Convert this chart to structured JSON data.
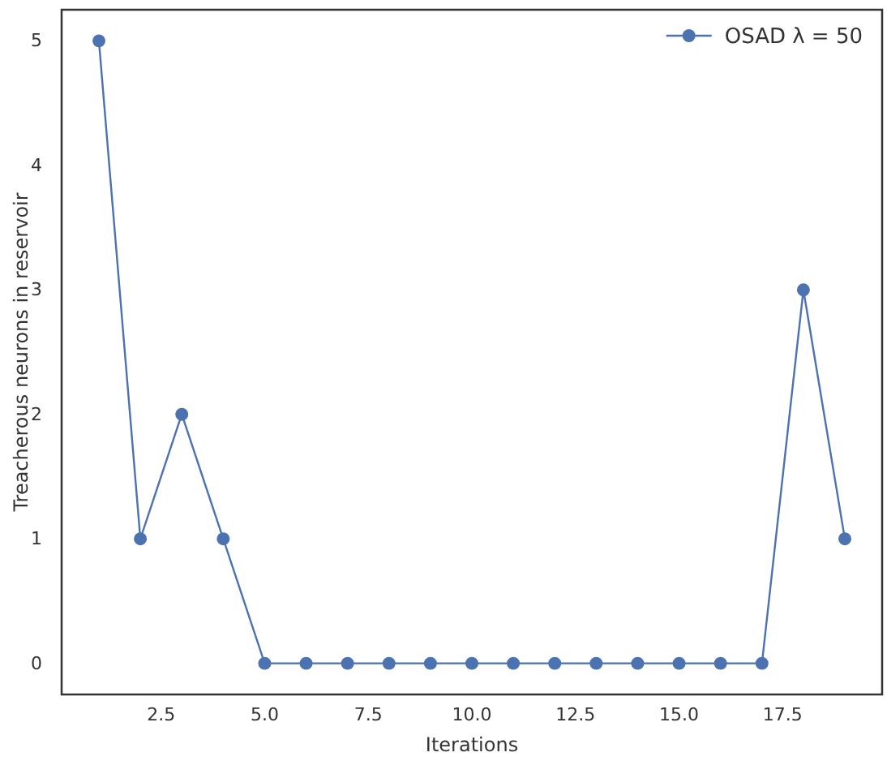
{
  "chart_data": {
    "type": "line",
    "xlabel": "Iterations",
    "ylabel": "Treacherous neurons in reservoir",
    "x": [
      1,
      2,
      3,
      4,
      5,
      6,
      7,
      8,
      9,
      10,
      11,
      12,
      13,
      14,
      15,
      16,
      17,
      18,
      19
    ],
    "series": [
      {
        "name": "OSAD λ = 50",
        "color": "#4c72b0",
        "values": [
          5,
          1,
          2,
          1,
          0,
          0,
          0,
          0,
          0,
          0,
          0,
          0,
          0,
          0,
          0,
          0,
          0,
          3,
          1
        ]
      }
    ],
    "xlim": [
      0.1,
      19.9
    ],
    "xticks": [
      {
        "value": 2.5,
        "label": "2.5"
      },
      {
        "value": 5,
        "label": "5.0"
      },
      {
        "value": 7.5,
        "label": "7.5"
      },
      {
        "value": 10,
        "label": "10.0"
      },
      {
        "value": 12.5,
        "label": "12.5"
      },
      {
        "value": 15,
        "label": "15.0"
      },
      {
        "value": 17.5,
        "label": "17.5"
      }
    ],
    "ylim": [
      -0.25,
      5.25
    ],
    "yticks": [
      0,
      1,
      2,
      3,
      4,
      5
    ],
    "grid": false,
    "legend": "top right",
    "marker": "circle",
    "line_style": "solid"
  }
}
